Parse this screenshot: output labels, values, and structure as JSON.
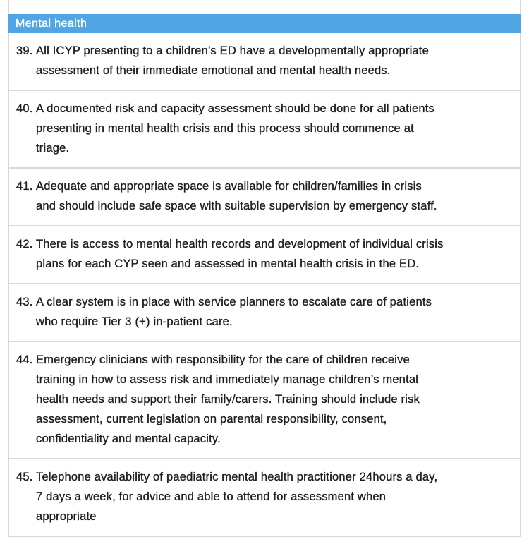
{
  "colors": {
    "header_bg": "#50A5E4",
    "header_text": "#ffffff",
    "border": "#d8d8d8",
    "text": "#1e1e1e",
    "page_bg": "#ffffff"
  },
  "table": {
    "header": {
      "label": "Mental health"
    },
    "items": [
      {
        "number": "39.",
        "text": "All ICYP presenting to a children’s ED have a developmentally appropriate assessment of their immediate emotional and mental health needs.",
        "lines": [
          "All ICYP presenting to a children’s ED have a developmentally appropriate",
          "assessment of their immediate emotional and mental health needs."
        ]
      },
      {
        "number": "40.",
        "text": "A documented risk and capacity assessment should be done for all patients presenting in mental health crisis and this process should commence at triage.",
        "lines": [
          "A documented risk and capacity assessment should be done for all patients",
          "presenting in mental health crisis and this process should commence at",
          "triage."
        ]
      },
      {
        "number": "41.",
        "text": "Adequate and appropriate space is available for children/families in crisis and should include safe space with suitable supervision by emergency staff.",
        "lines": [
          "Adequate and appropriate space is available for children/families in crisis",
          "and should include safe space with suitable supervision by emergency staff."
        ]
      },
      {
        "number": "42.",
        "text": "There is access to mental health records and development of individual crisis plans for each CYP seen and assessed in mental health crisis in the ED.",
        "lines": [
          "There is access to mental health records and development of individual crisis",
          "plans for each CYP seen and assessed in mental health crisis in the ED."
        ]
      },
      {
        "number": "43.",
        "text": "A clear system is in place with service planners to escalate care of patients who require Tier 3 (+) in-patient care.",
        "lines": [
          "A clear system is in place with service planners to escalate care of patients",
          "who require Tier 3 (+) in-patient care."
        ]
      },
      {
        "number": "44.",
        "text": "Emergency clinicians with responsibility for the care of children receive training in how to assess risk and immediately manage children’s mental health needs and support their family/carers. Training should include risk assessment, current legislation on parental responsibility, consent, confidentiality and mental capacity.",
        "lines": [
          "Emergency clinicians with responsibility for the care of children receive",
          "training in how to assess risk and immediately manage children’s mental",
          "health needs and support their family/carers. Training should include risk",
          "assessment, current legislation on parental responsibility, consent,",
          "confidentiality and mental capacity."
        ]
      },
      {
        "number": "45.",
        "text": "Telephone availability of paediatric mental health practitioner 24hours a day, 7 days a week, for advice and able to attend for assessment when appropriate",
        "lines": [
          "Telephone availability of paediatric mental health practitioner 24hours a day,",
          "7 days a week, for advice and able to attend for assessment when",
          "appropriate"
        ]
      }
    ]
  }
}
